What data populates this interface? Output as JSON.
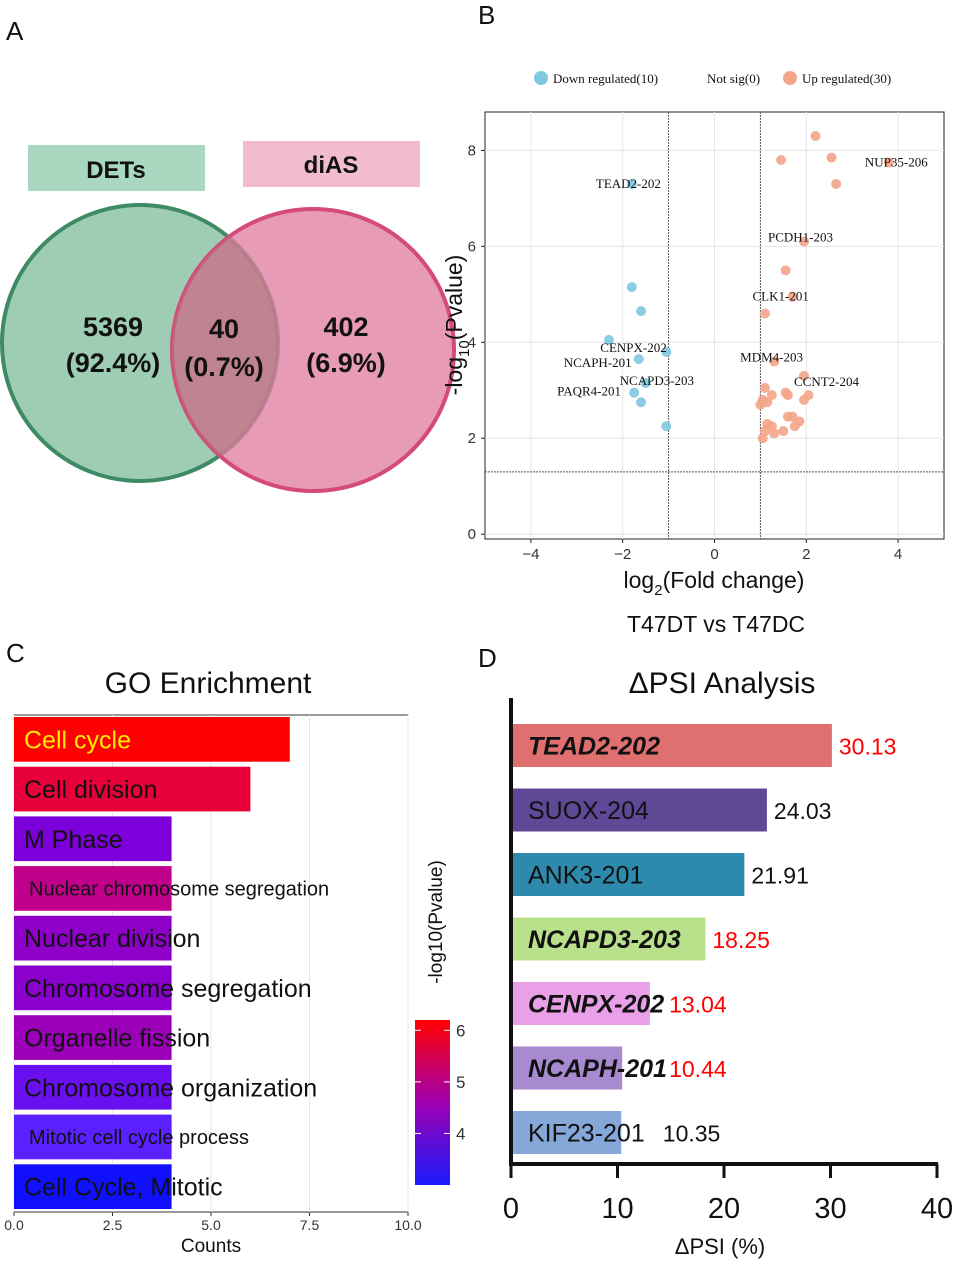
{
  "panel_labels": {
    "a": "A",
    "b": "B",
    "c": "C",
    "d": "D"
  },
  "venn": {
    "left_label": "DETs",
    "right_label": "diAS",
    "left_count": "5369",
    "left_pct": "(92.4%)",
    "overlap_count": "40",
    "overlap_pct": "(0.7%)",
    "right_count": "402",
    "right_pct": "(6.9%)",
    "colors": {
      "left_fill": "#9fcdb4",
      "left_stroke": "#3d8a64",
      "right_fill": "#e07fa3",
      "right_stroke": "#d44a7a",
      "left_tag": "#a8d8c0",
      "right_tag": "#f2bcd0"
    }
  },
  "chart_data": [
    {
      "type": "scatter",
      "title": "",
      "subtitle": "T47DT vs T47DC",
      "xlabel_main": "log",
      "xlabel_sub": "2",
      "xlabel_tail": "(Fold change)",
      "ylabel_main": "-log",
      "ylabel_sub": "10",
      "ylabel_tail": "(Pvalue)",
      "xlim": [
        -5,
        5
      ],
      "ylim": [
        -0.1,
        8.8
      ],
      "xticks": [
        -4,
        -2,
        0,
        2,
        4
      ],
      "xtick_labels": [
        "−4",
        "−2",
        "0",
        "2",
        "4"
      ],
      "yticks": [
        0,
        2,
        4,
        6,
        8
      ],
      "ytick_labels": [
        "0",
        "2",
        "4",
        "6",
        "8"
      ],
      "vlines": [
        -1,
        1
      ],
      "hline": 1.3,
      "legend": [
        {
          "label": "Down regulated(10)",
          "color": "#7ec8e0",
          "marker": true
        },
        {
          "label": "Not sig(0)",
          "color": "#999999",
          "marker": false
        },
        {
          "label": "Up regulated(30)",
          "color": "#f4a58a",
          "marker": true
        }
      ],
      "series": [
        {
          "name": "Down regulated",
          "color": "#7ec8e0",
          "points": [
            [
              -1.8,
              7.3
            ],
            [
              -1.8,
              5.15
            ],
            [
              -1.6,
              4.65
            ],
            [
              -2.3,
              4.05
            ],
            [
              -1.65,
              3.65
            ],
            [
              -1.05,
              3.8
            ],
            [
              -1.5,
              3.15
            ],
            [
              -1.75,
              2.95
            ],
            [
              -1.6,
              2.75
            ],
            [
              -1.05,
              2.25
            ]
          ]
        },
        {
          "name": "Up regulated",
          "color": "#f4a58a",
          "points": [
            [
              2.2,
              8.3
            ],
            [
              2.55,
              7.85
            ],
            [
              1.45,
              7.8
            ],
            [
              2.65,
              7.3
            ],
            [
              3.8,
              7.75
            ],
            [
              1.95,
              6.1
            ],
            [
              1.55,
              5.5
            ],
            [
              1.7,
              4.95
            ],
            [
              1.1,
              4.6
            ],
            [
              1.3,
              3.6
            ],
            [
              1.95,
              3.3
            ],
            [
              1.1,
              3.05
            ],
            [
              1.25,
              2.9
            ],
            [
              1.55,
              2.95
            ],
            [
              1.6,
              2.9
            ],
            [
              1.95,
              2.8
            ],
            [
              2.05,
              2.9
            ],
            [
              1.05,
              2.8
            ],
            [
              1.15,
              2.75
            ],
            [
              1.0,
              2.7
            ],
            [
              1.6,
              2.45
            ],
            [
              1.7,
              2.45
            ],
            [
              1.15,
              2.3
            ],
            [
              1.25,
              2.25
            ],
            [
              1.1,
              2.15
            ],
            [
              1.5,
              2.15
            ],
            [
              1.75,
              2.25
            ],
            [
              1.3,
              2.1
            ],
            [
              1.05,
              2.0
            ],
            [
              1.85,
              2.35
            ]
          ]
        }
      ],
      "annotations": [
        {
          "text": "TEAD2-202",
          "x": -1.8,
          "y": 7.3
        },
        {
          "text": "NUP35-206",
          "x": 3.8,
          "y": 7.75
        },
        {
          "text": "PCDH1-203",
          "x": 1.95,
          "y": 6.1
        },
        {
          "text": "CLK1-201",
          "x": 1.7,
          "y": 4.95
        },
        {
          "text": "CENPX-202",
          "x": -1.05,
          "y": 3.8
        },
        {
          "text": "NCAPH-201",
          "x": -1.65,
          "y": 3.65
        },
        {
          "text": "MDM4-203",
          "x": 1.3,
          "y": 3.6
        },
        {
          "text": "NCAPD3-203",
          "x": -1.5,
          "y": 3.15
        },
        {
          "text": "CCNT2-204",
          "x": 1.95,
          "y": 3.3
        },
        {
          "text": "PAQR4-201",
          "x": -1.75,
          "y": 2.95
        }
      ]
    },
    {
      "type": "bar",
      "orientation": "horizontal",
      "title": "GO Enrichment",
      "xlabel": "Counts",
      "xlim": [
        0,
        10
      ],
      "xticks": [
        0,
        2.5,
        5,
        7.5,
        10
      ],
      "xtick_labels": [
        "0.0",
        "2.5",
        "5.0",
        "7.5",
        "10.0"
      ],
      "categories": [
        "Cell cycle",
        "Cell division",
        "M Phase",
        "Nuclear chromosome segregation",
        "Nuclear division",
        "Chromosome segregation",
        "Organelle fission",
        "Chromosome organization",
        "Mitotic cell cycle process",
        "Cell Cycle, Mitotic"
      ],
      "values": [
        7,
        6,
        4,
        4,
        4,
        4,
        4,
        4,
        4,
        4
      ],
      "neg_log10_pvalue": [
        6.2,
        5.7,
        4.2,
        5.1,
        4.4,
        4.3,
        4.5,
        3.8,
        3.6,
        3.1
      ],
      "colors": [
        "#ff0000",
        "#e8003a",
        "#7d00db",
        "#c0008a",
        "#8f00c8",
        "#8a00cc",
        "#9b00b8",
        "#6a10f0",
        "#5a20ff",
        "#1010ff"
      ],
      "label_colors": [
        "#ffee00",
        "#111111",
        "#111111",
        "#111111",
        "#111111",
        "#111111",
        "#111111",
        "#111111",
        "#111111",
        "#111111"
      ],
      "colorbar": {
        "title": "-log10(Pvalue)",
        "min": 3.0,
        "max": 6.2,
        "ticks": [
          4,
          5,
          6
        ],
        "tick_labels": [
          "4",
          "5",
          "6"
        ],
        "low_color": "#1a1aff",
        "mid_color": "#a000b0",
        "high_color": "#ff0000"
      }
    },
    {
      "type": "bar",
      "orientation": "horizontal",
      "title": "ΔPSI Analysis",
      "xlabel": "ΔPSI (%)",
      "xlim": [
        0,
        40
      ],
      "xticks": [
        0,
        10,
        20,
        30,
        40
      ],
      "xtick_labels": [
        "0",
        "10",
        "20",
        "30",
        "40"
      ],
      "categories": [
        "TEAD2-202",
        "SUOX-204",
        "ANK3-201",
        "NCAPD3-203",
        "CENPX-202",
        "NCAPH-201",
        "KIF23-201"
      ],
      "values": [
        30.13,
        24.03,
        21.91,
        18.25,
        13.04,
        10.44,
        10.35
      ],
      "value_labels": [
        "30.13",
        "24.03",
        "21.91",
        "18.25",
        "13.04",
        "10.44",
        "10.35"
      ],
      "colors": [
        "#e07070",
        "#5f4896",
        "#2e8aad",
        "#b9e08a",
        "#eaa0e8",
        "#a88ad0",
        "#86a8d8"
      ],
      "bold_italic": [
        true,
        false,
        false,
        true,
        true,
        true,
        false
      ],
      "value_colors": [
        "#ff0000",
        "#111111",
        "#111111",
        "#ff0000",
        "#ff0000",
        "#ff0000",
        "#111111"
      ]
    }
  ]
}
